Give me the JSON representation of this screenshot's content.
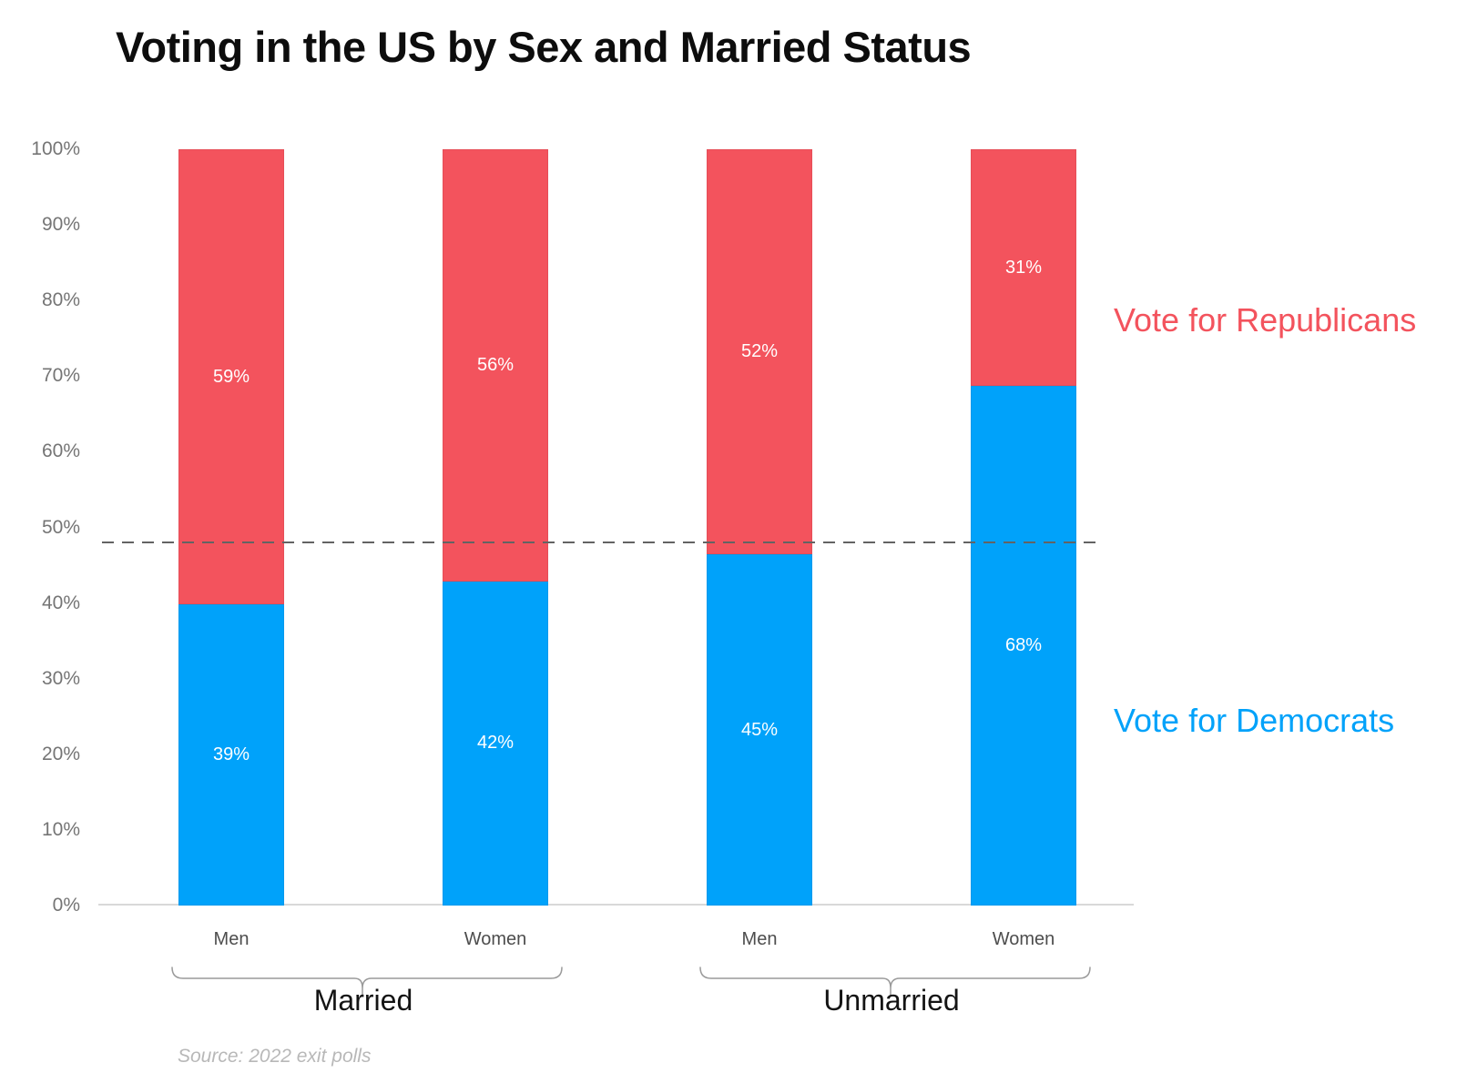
{
  "title": "Voting in the US by Sex and Married Status",
  "source_note": "Source: 2022 exit polls",
  "legend": {
    "republicans": "Vote for Republicans",
    "democrats": "Vote for Democrats"
  },
  "colors": {
    "republican_red": "#F3535D",
    "democrat_blue": "#00A2FA",
    "reference_line": "#636363"
  },
  "chart_data": {
    "type": "bar",
    "variant": "stacked-100-percent",
    "title": "Voting in the US by Sex and Married Status",
    "categories": [
      "Men",
      "Women",
      "Men",
      "Women"
    ],
    "groups": [
      {
        "label": "Married",
        "from": 0,
        "to": 1
      },
      {
        "label": "Unmarried",
        "from": 2,
        "to": 3
      }
    ],
    "series": [
      {
        "name": "Vote for Democrats",
        "color": "#00A2FA",
        "values": [
          39,
          42,
          45,
          68
        ],
        "labels": [
          "39%",
          "42%",
          "45%",
          "68%"
        ]
      },
      {
        "name": "Vote for Republicans",
        "color": "#F3535D",
        "values": [
          59,
          56,
          52,
          31
        ],
        "labels": [
          "59%",
          "56%",
          "52%",
          "31%"
        ]
      }
    ],
    "y_axis": {
      "min": 0,
      "max": 100,
      "tick_step": 10,
      "tick_labels": [
        "0%",
        "10%",
        "20%",
        "30%",
        "40%",
        "50%",
        "60%",
        "70%",
        "80%",
        "90%",
        "100%"
      ]
    },
    "reference_line": {
      "value": 48,
      "style": "dashed",
      "color": "#636363"
    },
    "legend_position": "right",
    "gridlines": false,
    "source": "Source: 2022 exit polls"
  }
}
